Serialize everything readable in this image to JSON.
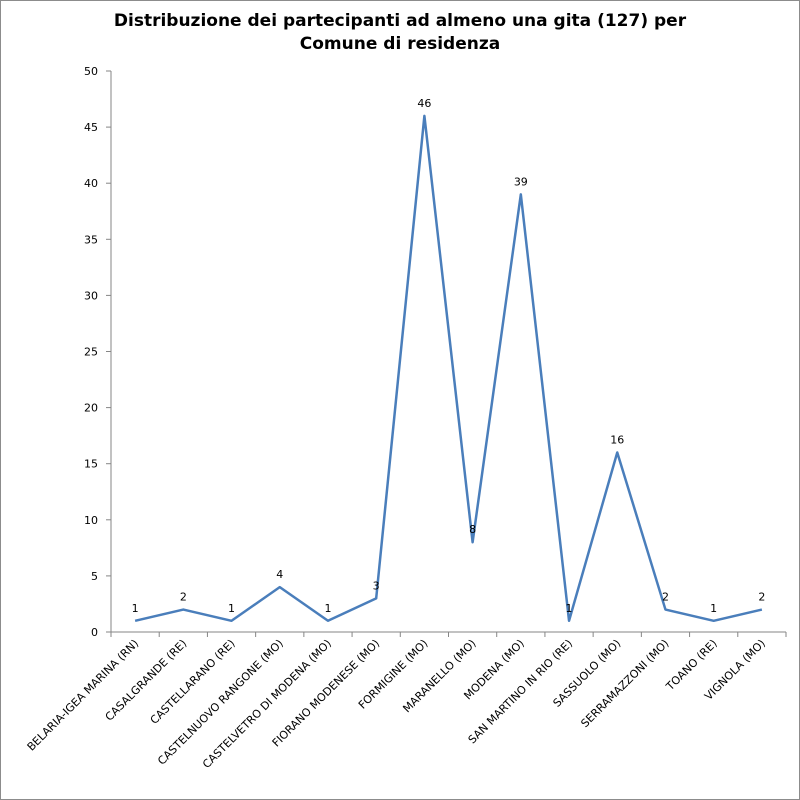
{
  "chart_data": {
    "type": "line",
    "title_lines": [
      "Distribuzione dei partecipanti ad almeno una gita (127) per",
      "Comune di residenza"
    ],
    "xlabel": "",
    "ylabel": "",
    "ylim": [
      0,
      50
    ],
    "yticks": [
      0,
      5,
      10,
      15,
      20,
      25,
      30,
      35,
      40,
      45,
      50
    ],
    "grid": false,
    "legend": "none",
    "categories": [
      "BELARIA-IGEA MARINA (RN)",
      "CASALGRANDE (RE)",
      "CASTELLARANO (RE)",
      "CASTELNUOVO RANGONE (MO)",
      "CASTELVETRO DI MODENA (MO)",
      "FIORANO MODENESE (MO)",
      "FORMIGINE (MO)",
      "MARANELLO (MO)",
      "MODENA (MO)",
      "SAN MARTINO IN RIO (RE)",
      "SASSUOLO (MO)",
      "SERRAMAZZONI (MO)",
      "TOANO (RE)",
      "VIGNOLA (MO)"
    ],
    "series": [
      {
        "values": [
          1,
          2,
          1,
          4,
          1,
          3,
          46,
          8,
          39,
          1,
          16,
          2,
          1,
          2
        ],
        "color": "#4a7ebb"
      }
    ],
    "data_labels": true
  }
}
